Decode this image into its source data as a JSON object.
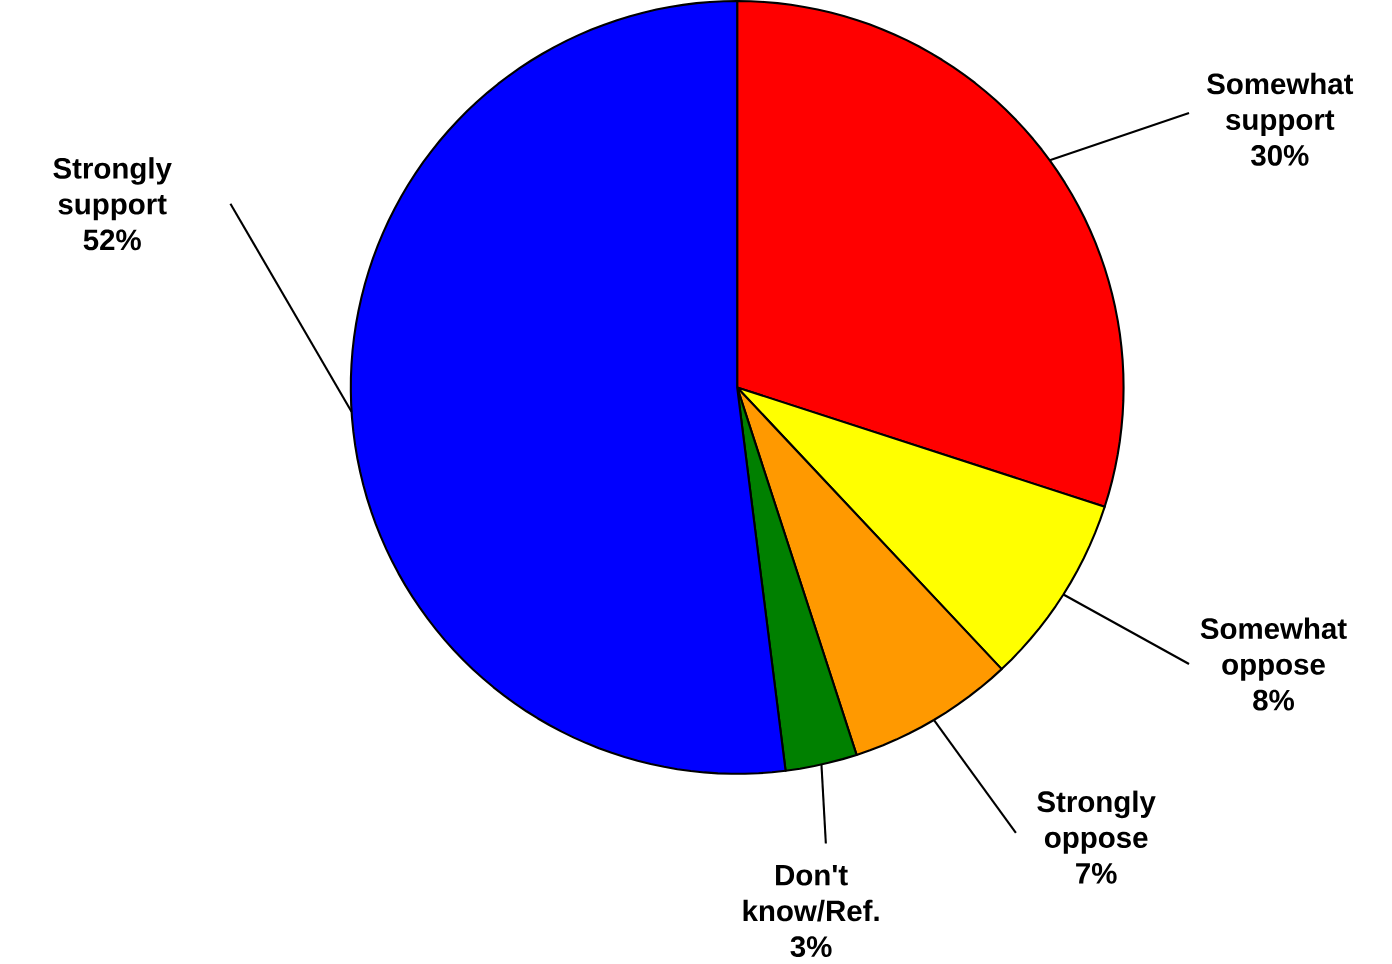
{
  "chart_data": {
    "type": "pie",
    "categories": [
      "Somewhat support",
      "Somewhat oppose",
      "Strongly oppose",
      "Don't know/Ref.",
      "Strongly support"
    ],
    "values": [
      30,
      8,
      7,
      3,
      52
    ],
    "value_labels": [
      "30%",
      "8%",
      "7%",
      "3%",
      "52%"
    ],
    "colors": [
      "#ff0000",
      "#ffff00",
      "#ff9900",
      "#008000",
      "#0000ff"
    ]
  }
}
